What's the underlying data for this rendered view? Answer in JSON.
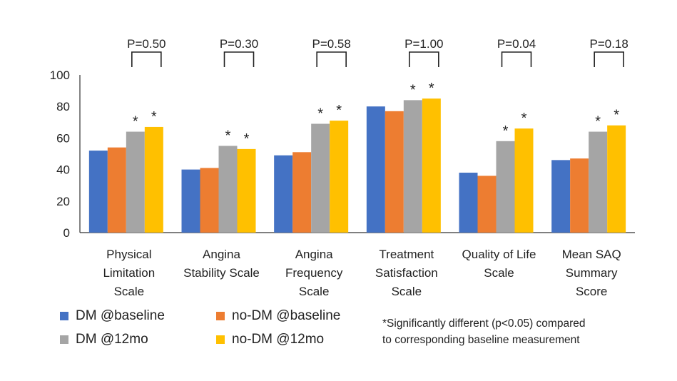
{
  "chart_data": {
    "type": "bar",
    "ylim": [
      0,
      100
    ],
    "yticks": [
      "0",
      "20",
      "40",
      "60",
      "80",
      "100"
    ],
    "categories": [
      [
        "Physical",
        "Limitation",
        "Scale"
      ],
      [
        "Angina",
        "Stability Scale"
      ],
      [
        "Angina",
        "Frequency",
        "Scale"
      ],
      [
        "Treatment",
        "Satisfaction",
        "Scale"
      ],
      [
        "Quality of Life",
        "Scale"
      ],
      [
        "Mean SAQ",
        "Summary",
        "Score"
      ]
    ],
    "series": [
      {
        "name": "DM @baseline",
        "color": "#4472C4",
        "values": [
          52,
          40,
          49,
          80,
          38,
          46
        ]
      },
      {
        "name": "no-DM @baseline",
        "color": "#ED7D31",
        "values": [
          54,
          41,
          51,
          77,
          36,
          47
        ]
      },
      {
        "name": "DM @12mo",
        "color": "#A5A5A5",
        "values": [
          64,
          55,
          69,
          84,
          58,
          64
        ]
      },
      {
        "name": "no-DM @12mo",
        "color": "#FFC000",
        "values": [
          67,
          53,
          71,
          85,
          66,
          68
        ]
      }
    ],
    "p_values": [
      "P=0.50",
      "P=0.30",
      "P=0.58",
      "P=1.00",
      "P=0.04",
      "P=0.18"
    ],
    "significance_marker": "*",
    "significant": [
      [
        false,
        false,
        true,
        true
      ],
      [
        false,
        false,
        true,
        true
      ],
      [
        false,
        false,
        true,
        true
      ],
      [
        false,
        false,
        true,
        true
      ],
      [
        false,
        false,
        true,
        true
      ],
      [
        false,
        false,
        true,
        true
      ]
    ],
    "footnote": [
      "*Significantly different (p<0.05) compared",
      "to corresponding baseline measurement"
    ]
  }
}
